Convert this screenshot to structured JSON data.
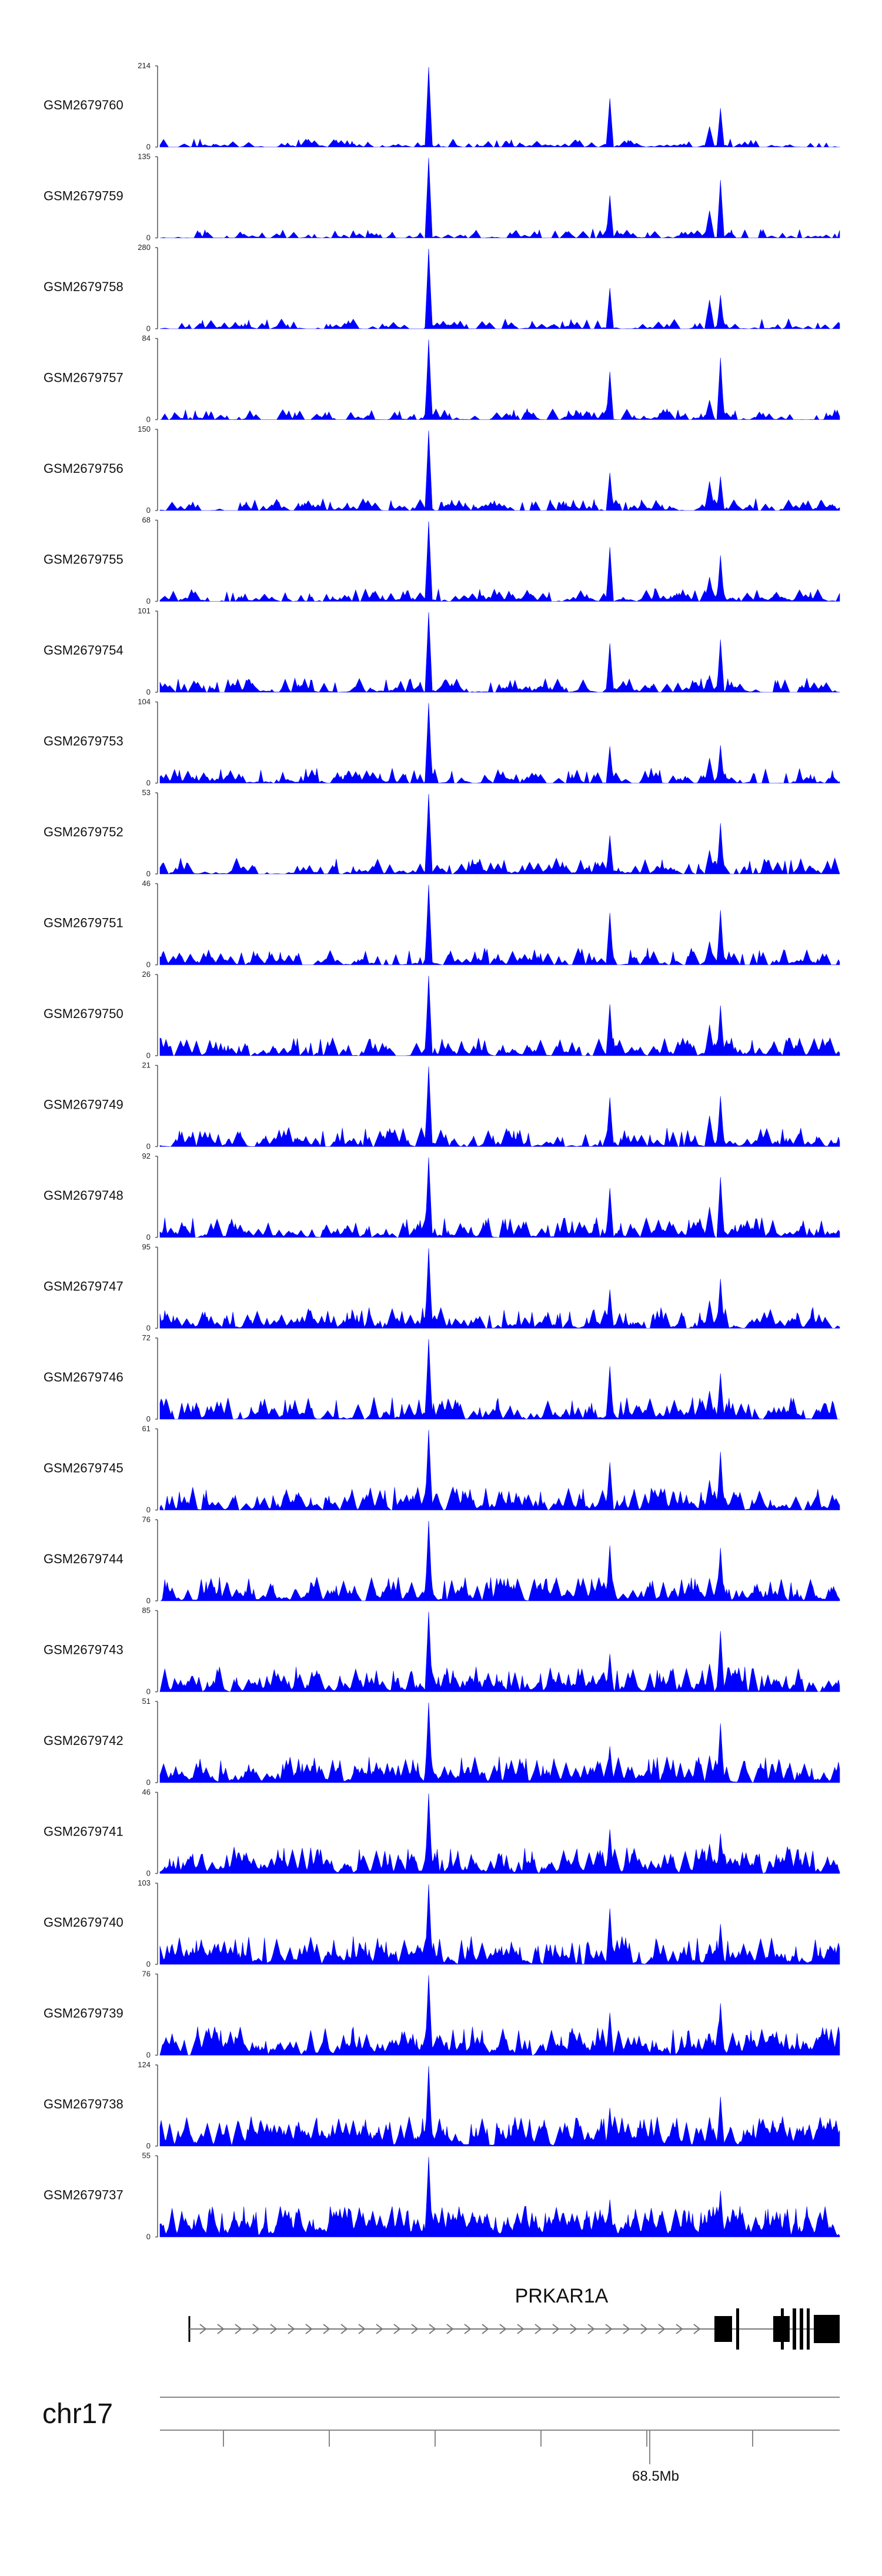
{
  "chart_data": {
    "type": "area",
    "title": "",
    "series_color": "#0000ff",
    "tracks": [
      {
        "name": "GSM2679760",
        "ymax": 214,
        "ymin": 0
      },
      {
        "name": "GSM2679759",
        "ymax": 135,
        "ymin": 0
      },
      {
        "name": "GSM2679758",
        "ymax": 280,
        "ymin": 0
      },
      {
        "name": "GSM2679757",
        "ymax": 84,
        "ymin": 0
      },
      {
        "name": "GSM2679756",
        "ymax": 150,
        "ymin": 0
      },
      {
        "name": "GSM2679755",
        "ymax": 68,
        "ymin": 0
      },
      {
        "name": "GSM2679754",
        "ymax": 101,
        "ymin": 0
      },
      {
        "name": "GSM2679753",
        "ymax": 104,
        "ymin": 0
      },
      {
        "name": "GSM2679752",
        "ymax": 53,
        "ymin": 0
      },
      {
        "name": "GSM2679751",
        "ymax": 46,
        "ymin": 0
      },
      {
        "name": "GSM2679750",
        "ymax": 26,
        "ymin": 0
      },
      {
        "name": "GSM2679749",
        "ymax": 21,
        "ymin": 0
      },
      {
        "name": "GSM2679748",
        "ymax": 92,
        "ymin": 0
      },
      {
        "name": "GSM2679747",
        "ymax": 95,
        "ymin": 0
      },
      {
        "name": "GSM2679746",
        "ymax": 72,
        "ymin": 0
      },
      {
        "name": "GSM2679745",
        "ymax": 61,
        "ymin": 0
      },
      {
        "name": "GSM2679744",
        "ymax": 76,
        "ymin": 0
      },
      {
        "name": "GSM2679743",
        "ymax": 85,
        "ymin": 0
      },
      {
        "name": "GSM2679742",
        "ymax": 51,
        "ymin": 0
      },
      {
        "name": "GSM2679741",
        "ymax": 46,
        "ymin": 0
      },
      {
        "name": "GSM2679740",
        "ymax": 103,
        "ymin": 0
      },
      {
        "name": "GSM2679739",
        "ymax": 76,
        "ymin": 0
      },
      {
        "name": "GSM2679738",
        "ymax": 124,
        "ymin": 0
      },
      {
        "name": "GSM2679737",
        "ymax": 55,
        "ymin": 0
      }
    ],
    "gene": {
      "name": "PRKAR1A",
      "strand": "+",
      "color": "#000000"
    },
    "chromosome": "chr17",
    "x_tick_labels": [
      "68.5Mb"
    ],
    "grid": false
  }
}
